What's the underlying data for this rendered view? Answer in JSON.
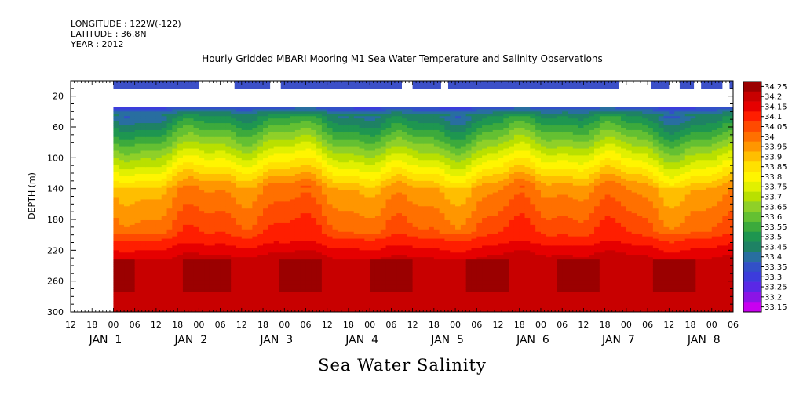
{
  "header": {
    "longitude": "LONGITUDE : 122W(-122)",
    "latitude": "LATITUDE : 36.8N",
    "year": "YEAR : 2012"
  },
  "chart_data": {
    "type": "heatmap",
    "title": "Hourly Gridded MBARI Mooring M1 Sea Water Temperature and Salinity Observations",
    "xlabel": "Sea Water Salinity",
    "ylabel": "DEPTH (m)",
    "ylim": [
      300,
      0
    ],
    "y_ticks": [
      20,
      60,
      100,
      140,
      180,
      220,
      260,
      300
    ],
    "x_range_hours": [
      -12,
      174
    ],
    "x_hour_ticks": [
      "12",
      "18",
      "00",
      "06",
      "12",
      "18",
      "00",
      "06",
      "12",
      "18",
      "00",
      "06",
      "12",
      "18",
      "00",
      "06",
      "12",
      "18",
      "00",
      "06",
      "12",
      "18",
      "00",
      "06",
      "12",
      "18",
      "00",
      "06",
      "12",
      "18",
      "00",
      "06"
    ],
    "date_labels": [
      "JAN 1",
      "JAN 2",
      "JAN 3",
      "JAN 4",
      "JAN 5",
      "JAN 6",
      "JAN 7",
      "JAN 8"
    ],
    "colorbar_levels": [
      "34.25",
      "34.2",
      "34.15",
      "34.1",
      "34.05",
      "34",
      "33.95",
      "33.9",
      "33.85",
      "33.8",
      "33.75",
      "33.7",
      "33.65",
      "33.6",
      "33.55",
      "33.5",
      "33.45",
      "33.4",
      "33.35",
      "33.3",
      "33.25",
      "33.2",
      "33.15"
    ],
    "colors": [
      "#9b0000",
      "#c80000",
      "#e60000",
      "#ff1e00",
      "#ff4a00",
      "#ff7000",
      "#ff9600",
      "#ffbe00",
      "#ffe100",
      "#fff500",
      "#e1f000",
      "#b9e000",
      "#8fd028",
      "#64c032",
      "#3caa3c",
      "#1e9650",
      "#1e8264",
      "#286ea0",
      "#3250c8",
      "#3c3cdc",
      "#5a28e6",
      "#8c14e6",
      "#c800f0"
    ],
    "surface_segments_hours": [
      [
        0,
        24
      ],
      [
        34,
        44
      ],
      [
        47,
        81
      ],
      [
        84,
        92
      ],
      [
        94,
        142
      ],
      [
        151,
        156
      ],
      [
        159,
        163
      ],
      [
        165,
        171
      ],
      [
        173,
        176
      ]
    ],
    "data_top_depth_m": 34,
    "data_start_hour": 0,
    "grid": false
  }
}
